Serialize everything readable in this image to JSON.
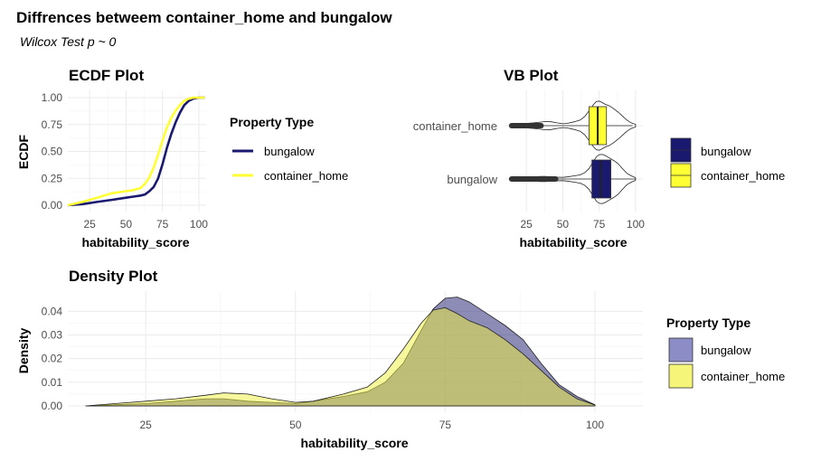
{
  "title": "Diffrences betweem container_home and bungalow",
  "subtitle": "Wilcox Test p ~ 0",
  "colors": {
    "bungalow": "#191970",
    "container_home": "#ffff33",
    "bungalow_fill": "#8c8cc7",
    "container_fill": "#f5f57a",
    "overlap_fill": "#b8b86a"
  },
  "chart_data": [
    {
      "id": "ecdf",
      "type": "line",
      "title": "ECDF Plot",
      "xlabel": "habitability_score",
      "ylabel": "ECDF",
      "xlim": [
        10,
        105
      ],
      "ylim": [
        0,
        1
      ],
      "x_ticks": [
        "25",
        "50",
        "75",
        "100"
      ],
      "y_ticks": [
        "0.00",
        "0.25",
        "0.50",
        "0.75",
        "1.00"
      ],
      "grid": true,
      "legend_title": "Property Type",
      "legend_position": "right",
      "series": [
        {
          "name": "bungalow",
          "x": [
            10,
            20,
            30,
            40,
            50,
            55,
            60,
            63,
            66,
            69,
            72,
            75,
            78,
            81,
            84,
            87,
            90,
            93,
            96,
            100,
            104
          ],
          "y": [
            0,
            0.01,
            0.03,
            0.05,
            0.07,
            0.08,
            0.09,
            0.1,
            0.13,
            0.17,
            0.25,
            0.38,
            0.53,
            0.66,
            0.77,
            0.86,
            0.93,
            0.97,
            0.99,
            1.0,
            1.0
          ]
        },
        {
          "name": "container_home",
          "x": [
            10,
            20,
            30,
            40,
            50,
            55,
            60,
            63,
            66,
            69,
            72,
            75,
            78,
            81,
            84,
            87,
            90,
            93,
            96,
            100,
            104
          ],
          "y": [
            0,
            0.03,
            0.07,
            0.11,
            0.13,
            0.14,
            0.16,
            0.2,
            0.26,
            0.35,
            0.47,
            0.6,
            0.72,
            0.81,
            0.88,
            0.93,
            0.97,
            0.99,
            1.0,
            1.0,
            1.0
          ]
        }
      ]
    },
    {
      "id": "vb",
      "type": "boxplot",
      "title": "VB Plot",
      "xlabel": "habitability_score",
      "xlim": [
        10,
        105
      ],
      "x_ticks": [
        "25",
        "50",
        "75",
        "100"
      ],
      "categories": [
        "container_home",
        "bungalow"
      ],
      "grid": true,
      "legend_position": "right",
      "series": [
        {
          "name": "container_home",
          "q1": 68,
          "median": 74,
          "q3": 80,
          "whisker_low": 37,
          "whisker_high": 98,
          "outliers_from": 13,
          "outliers_to": 37
        },
        {
          "name": "bungalow",
          "q1": 70,
          "median": 76,
          "q3": 83,
          "whisker_low": 47,
          "whisker_high": 100,
          "outliers_from": 13,
          "outliers_to": 47
        }
      ]
    },
    {
      "id": "density",
      "type": "area",
      "title": "Density Plot",
      "xlabel": "habitability_score",
      "ylabel": "Density",
      "xlim": [
        12,
        108
      ],
      "ylim": [
        0,
        0.047
      ],
      "x_ticks": [
        "25",
        "50",
        "75",
        "100"
      ],
      "y_ticks": [
        "0.00",
        "0.01",
        "0.02",
        "0.03",
        "0.04"
      ],
      "grid": true,
      "legend_title": "Property Type",
      "legend_position": "right",
      "series": [
        {
          "name": "bungalow",
          "x": [
            15,
            20,
            25,
            30,
            35,
            38,
            42,
            46,
            50,
            53,
            58,
            62,
            65,
            68,
            71,
            73,
            75,
            77,
            79,
            82,
            85,
            88,
            91,
            94,
            97,
            100
          ],
          "y": [
            0.0,
            0.0005,
            0.001,
            0.002,
            0.003,
            0.003,
            0.002,
            0.0015,
            0.001,
            0.002,
            0.004,
            0.006,
            0.01,
            0.018,
            0.032,
            0.041,
            0.0455,
            0.046,
            0.044,
            0.039,
            0.034,
            0.028,
            0.018,
            0.009,
            0.004,
            0.0005
          ]
        },
        {
          "name": "container_home",
          "x": [
            15,
            20,
            25,
            30,
            35,
            38,
            42,
            46,
            50,
            53,
            58,
            62,
            65,
            68,
            71,
            73,
            75,
            77,
            79,
            82,
            85,
            88,
            91,
            94,
            97,
            100
          ],
          "y": [
            0.0,
            0.001,
            0.002,
            0.003,
            0.0045,
            0.0055,
            0.005,
            0.003,
            0.0015,
            0.002,
            0.005,
            0.008,
            0.014,
            0.024,
            0.035,
            0.0405,
            0.0415,
            0.039,
            0.036,
            0.033,
            0.028,
            0.022,
            0.015,
            0.008,
            0.003,
            0.0004
          ]
        }
      ]
    }
  ]
}
